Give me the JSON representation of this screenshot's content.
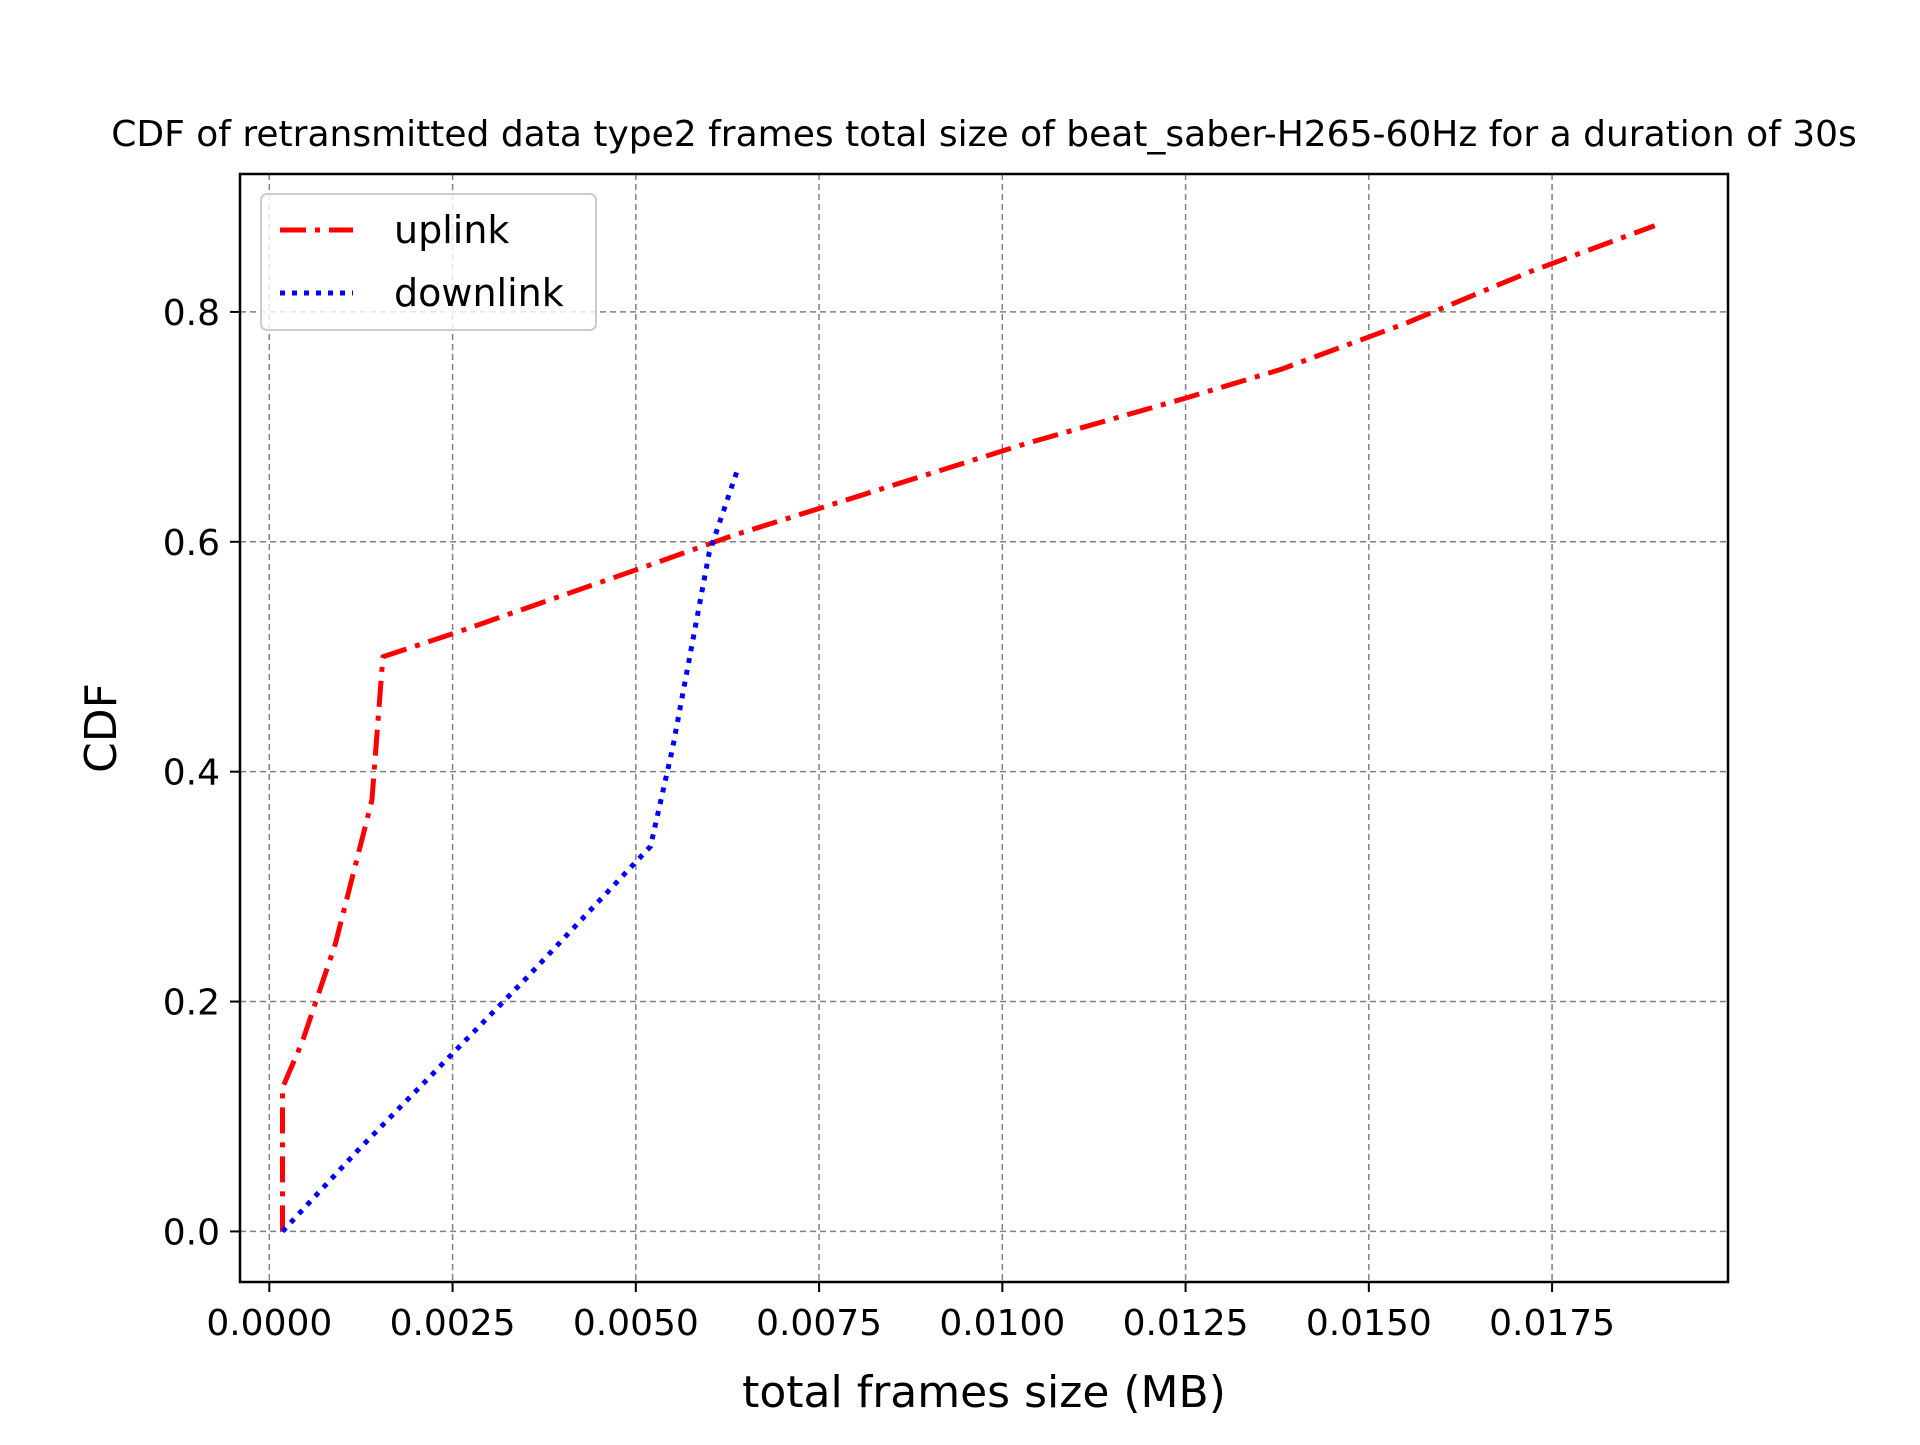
{
  "chart_data": {
    "type": "line",
    "title": "CDF of retransmitted data type2 frames total size of beat_saber-H265-60Hz for a duration of 30s",
    "xlabel": "total frames size (MB)",
    "ylabel": "CDF",
    "xlim": [
      -0.0004,
      0.0199
    ],
    "ylim": [
      -0.044,
      0.92
    ],
    "xticks": [
      0.0,
      0.0025,
      0.005,
      0.0075,
      0.01,
      0.0125,
      0.015,
      0.0175
    ],
    "xtick_labels": [
      "0.0000",
      "0.0025",
      "0.0050",
      "0.0075",
      "0.0100",
      "0.0125",
      "0.0150",
      "0.0175"
    ],
    "yticks": [
      0.0,
      0.2,
      0.4,
      0.6,
      0.8
    ],
    "ytick_labels": [
      "0.0",
      "0.2",
      "0.4",
      "0.6",
      "0.8"
    ],
    "grid": true,
    "legend_position": "top-left",
    "series": [
      {
        "name": "uplink",
        "color": "#ff0000",
        "style": "dashdot",
        "points": [
          [
            0.00018,
            0.0
          ],
          [
            0.00018,
            0.125
          ],
          [
            0.00045,
            0.165
          ],
          [
            0.0009,
            0.25
          ],
          [
            0.0014,
            0.375
          ],
          [
            0.00155,
            0.5
          ],
          [
            0.0025,
            0.52
          ],
          [
            0.0052,
            0.58
          ],
          [
            0.0063,
            0.605
          ],
          [
            0.0083,
            0.645
          ],
          [
            0.0103,
            0.685
          ],
          [
            0.0125,
            0.725
          ],
          [
            0.0138,
            0.75
          ],
          [
            0.0155,
            0.79
          ],
          [
            0.0172,
            0.835
          ],
          [
            0.0189,
            0.875
          ]
        ]
      },
      {
        "name": "downlink",
        "color": "#0000ff",
        "style": "dotted",
        "points": [
          [
            0.00018,
            0.0
          ],
          [
            0.0012,
            0.07
          ],
          [
            0.0035,
            0.22
          ],
          [
            0.0052,
            0.335
          ],
          [
            0.0055,
            0.42
          ],
          [
            0.006,
            0.59
          ],
          [
            0.0064,
            0.665
          ]
        ]
      }
    ]
  }
}
